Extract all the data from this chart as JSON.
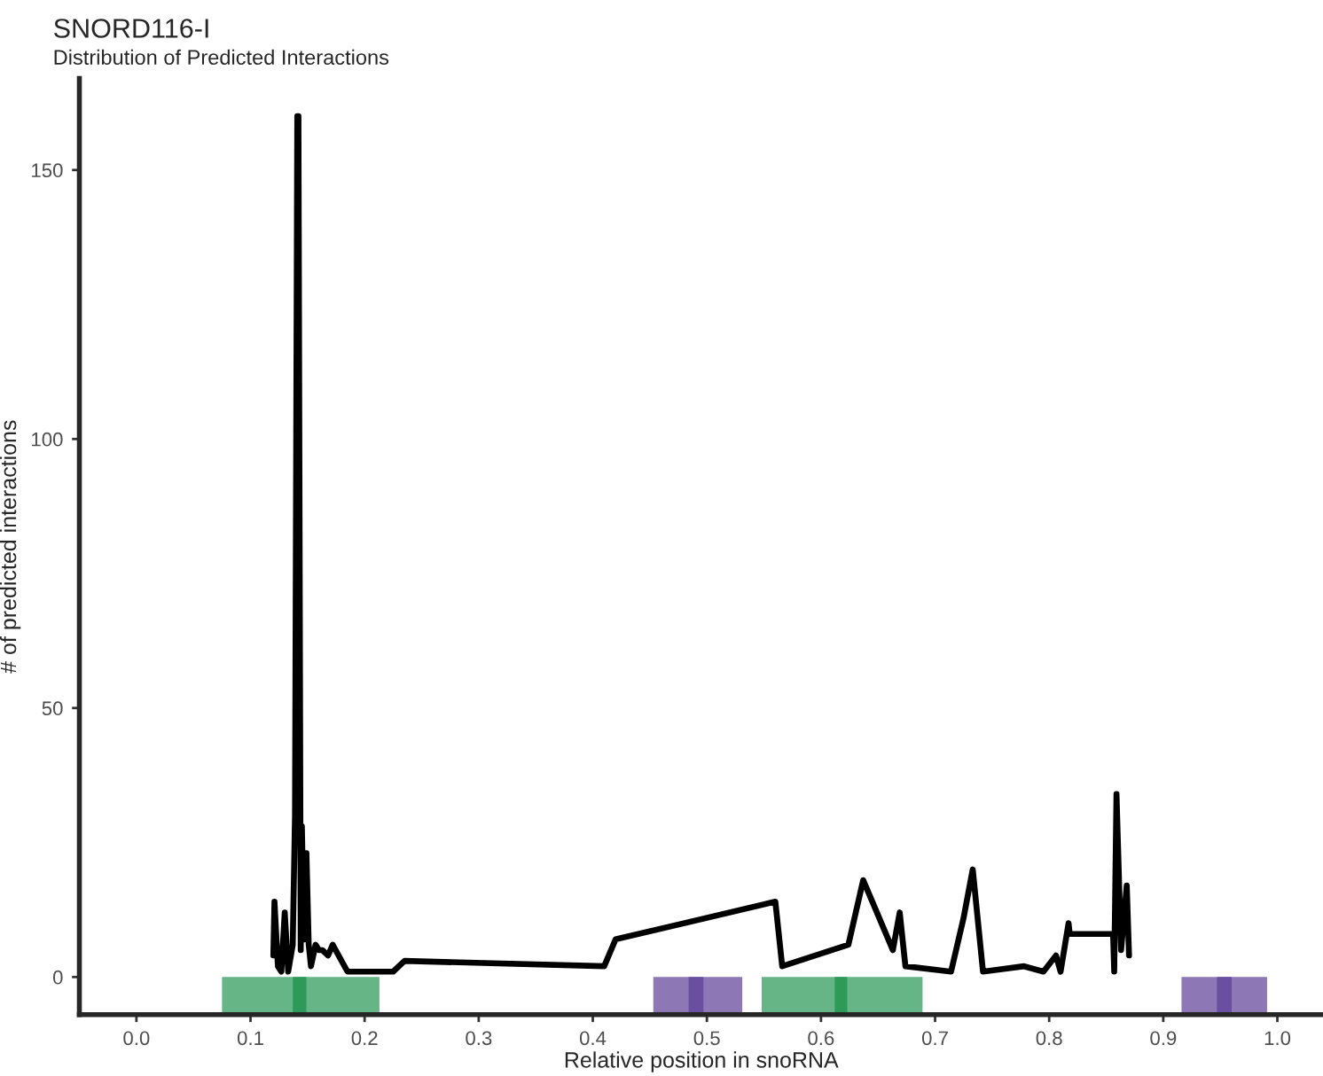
{
  "chart_data": {
    "type": "line",
    "title": "SNORD116-I",
    "subtitle": "Distribution of Predicted Interactions",
    "xlabel": "Relative position in snoRNA",
    "ylabel": "# of predicted interactions",
    "series": [
      {
        "color": "#000000",
        "x": [
          0.12,
          0.121,
          0.124,
          0.127,
          0.13,
          0.133,
          0.137,
          0.139,
          0.141,
          0.142,
          0.144,
          0.145,
          0.147,
          0.149,
          0.151,
          0.153,
          0.157,
          0.16,
          0.163,
          0.168,
          0.172,
          0.185,
          0.225,
          0.235,
          0.41,
          0.42,
          0.56,
          0.566,
          0.624,
          0.637,
          0.663,
          0.669,
          0.674,
          0.714,
          0.725,
          0.733,
          0.742,
          0.778,
          0.795,
          0.806,
          0.81,
          0.817,
          0.818,
          0.856,
          0.857,
          0.859,
          0.863,
          0.868,
          0.87
        ],
        "values": [
          4,
          14,
          2,
          1,
          12,
          1,
          6,
          30,
          160,
          160,
          5,
          28,
          7,
          23,
          6,
          2,
          6,
          5,
          5,
          4,
          6,
          1,
          1,
          3,
          2,
          7,
          14,
          2,
          6,
          18,
          5,
          12,
          2,
          1,
          11,
          20,
          1,
          2,
          1,
          4,
          1,
          10,
          8,
          8,
          1,
          34,
          5,
          17,
          4
        ]
      }
    ],
    "bands": [
      {
        "axis": "x",
        "from": 0.075,
        "to": 0.213,
        "color": "#66b587"
      },
      {
        "axis": "x",
        "from": 0.137,
        "to": 0.149,
        "color": "#2e9a5a"
      },
      {
        "axis": "x",
        "from": 0.453,
        "to": 0.531,
        "color": "#8d78b5"
      },
      {
        "axis": "x",
        "from": 0.484,
        "to": 0.497,
        "color": "#6a4fa0"
      },
      {
        "axis": "x",
        "from": 0.548,
        "to": 0.689,
        "color": "#66b587"
      },
      {
        "axis": "x",
        "from": 0.612,
        "to": 0.623,
        "color": "#2e9a5a"
      },
      {
        "axis": "x",
        "from": 0.916,
        "to": 0.991,
        "color": "#8d78b5"
      },
      {
        "axis": "x",
        "from": 0.947,
        "to": 0.96,
        "color": "#6a4fa0"
      }
    ],
    "xlim": [
      -0.05,
      1.04
    ],
    "ylim": [
      -7,
      167
    ],
    "xticks": [
      {
        "value": 0.0,
        "label": "0.0"
      },
      0.1,
      0.2,
      0.3,
      0.4,
      0.5,
      0.6,
      0.7,
      0.8,
      0.9,
      {
        "value": 1.0,
        "label": "1.0"
      }
    ],
    "yticks": [
      0,
      50,
      100,
      150
    ],
    "grid": false,
    "legend": false,
    "line_style": "solid",
    "marker": "none"
  }
}
